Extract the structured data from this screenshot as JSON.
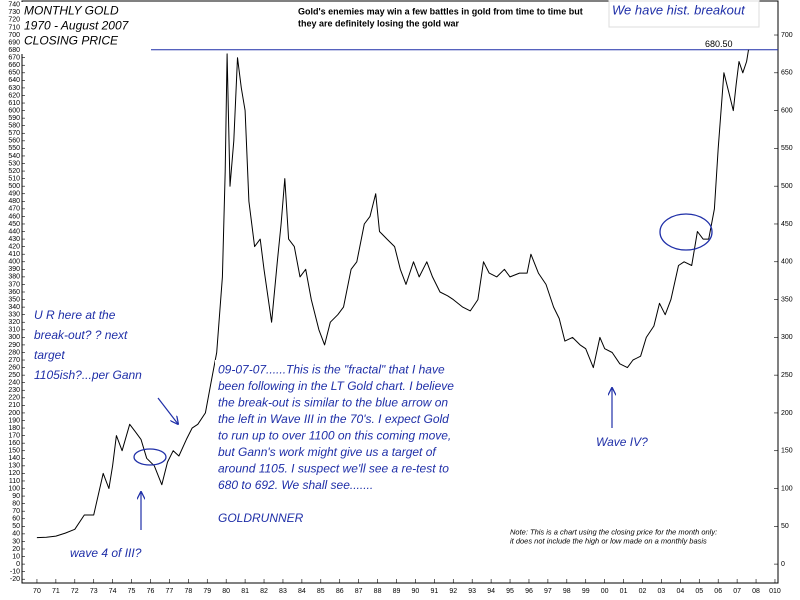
{
  "chart_data": {
    "type": "line",
    "series": [
      {
        "name": "Gold closing price",
        "color": "#000000",
        "x": [
          1970.0,
          1970.5,
          1971.0,
          1971.5,
          1972.0,
          1972.5,
          1973.0,
          1973.5,
          1973.8,
          1974.0,
          1974.2,
          1974.5,
          1974.9,
          1975.2,
          1975.5,
          1975.8,
          1976.2,
          1976.6,
          1976.9,
          1977.2,
          1977.5,
          1977.9,
          1978.2,
          1978.5,
          1978.9,
          1979.2,
          1979.5,
          1979.8,
          1979.95,
          1980.05,
          1980.2,
          1980.4,
          1980.6,
          1980.8,
          1981.0,
          1981.2,
          1981.5,
          1981.8,
          1982.0,
          1982.4,
          1982.7,
          1982.9,
          1983.1,
          1983.3,
          1983.6,
          1983.9,
          1984.2,
          1984.5,
          1984.9,
          1985.2,
          1985.5,
          1985.9,
          1986.2,
          1986.6,
          1986.9,
          1987.3,
          1987.6,
          1987.9,
          1988.1,
          1988.5,
          1988.9,
          1989.2,
          1989.5,
          1989.9,
          1990.2,
          1990.6,
          1990.9,
          1991.3,
          1991.7,
          1992.0,
          1992.5,
          1992.9,
          1993.3,
          1993.6,
          1993.9,
          1994.3,
          1994.7,
          1995.0,
          1995.5,
          1995.9,
          1996.1,
          1996.5,
          1996.9,
          1997.3,
          1997.6,
          1997.9,
          1998.3,
          1998.7,
          1999.0,
          1999.4,
          1999.75,
          2000.0,
          2000.4,
          2000.8,
          2001.2,
          2001.5,
          2001.9,
          2002.2,
          2002.6,
          2002.9,
          2003.2,
          2003.5,
          2003.9,
          2004.2,
          2004.6,
          2004.9,
          2005.2,
          2005.5,
          2005.8,
          2006.0,
          2006.3,
          2006.6,
          2006.8,
          2006.95,
          2007.1,
          2007.3,
          2007.5,
          2007.6
        ],
        "values": [
          35,
          35.5,
          37,
          41,
          46,
          65,
          65,
          120,
          100,
          130,
          170,
          150,
          185,
          175,
          165,
          140,
          130,
          105,
          135,
          150,
          143,
          165,
          180,
          185,
          200,
          240,
          280,
          380,
          520,
          675,
          500,
          560,
          670,
          630,
          600,
          480,
          420,
          430,
          390,
          320,
          400,
          450,
          510,
          430,
          420,
          380,
          390,
          350,
          310,
          290,
          320,
          330,
          340,
          390,
          400,
          450,
          460,
          490,
          440,
          430,
          420,
          390,
          370,
          400,
          380,
          400,
          380,
          360,
          355,
          350,
          340,
          335,
          350,
          400,
          385,
          380,
          390,
          380,
          385,
          385,
          410,
          385,
          370,
          340,
          325,
          295,
          300,
          290,
          285,
          260,
          300,
          285,
          280,
          265,
          260,
          270,
          275,
          300,
          315,
          345,
          330,
          350,
          395,
          400,
          395,
          440,
          430,
          430,
          470,
          550,
          650,
          620,
          600,
          635,
          665,
          650,
          665,
          680.5
        ]
      }
    ],
    "xlim": [
      1969.21,
      2009.16
    ],
    "xticks": [
      {
        "value": 1970,
        "label": "70"
      },
      {
        "value": 1971,
        "label": "71"
      },
      {
        "value": 1972,
        "label": "72"
      },
      {
        "value": 1973,
        "label": "73"
      },
      {
        "value": 1974,
        "label": "74"
      },
      {
        "value": 1975,
        "label": "75"
      },
      {
        "value": 1976,
        "label": "76"
      },
      {
        "value": 1977,
        "label": "77"
      },
      {
        "value": 1978,
        "label": "78"
      },
      {
        "value": 1979,
        "label": "79"
      },
      {
        "value": 1980,
        "label": "80"
      },
      {
        "value": 1981,
        "label": "81"
      },
      {
        "value": 1982,
        "label": "82"
      },
      {
        "value": 1983,
        "label": "83"
      },
      {
        "value": 1984,
        "label": "84"
      },
      {
        "value": 1985,
        "label": "85"
      },
      {
        "value": 1986,
        "label": "86"
      },
      {
        "value": 1987,
        "label": "87"
      },
      {
        "value": 1988,
        "label": "88"
      },
      {
        "value": 1989,
        "label": "89"
      },
      {
        "value": 1990,
        "label": "90"
      },
      {
        "value": 1991,
        "label": "91"
      },
      {
        "value": 1992,
        "label": "92"
      },
      {
        "value": 1993,
        "label": "93"
      },
      {
        "value": 1994,
        "label": "94"
      },
      {
        "value": 1995,
        "label": "95"
      },
      {
        "value": 1996,
        "label": "96"
      },
      {
        "value": 1997,
        "label": "97"
      },
      {
        "value": 1998,
        "label": "98"
      },
      {
        "value": 1999,
        "label": "99"
      },
      {
        "value": 2000,
        "label": "00"
      },
      {
        "value": 2001,
        "label": "01"
      },
      {
        "value": 2002,
        "label": "02"
      },
      {
        "value": 2003,
        "label": "03"
      },
      {
        "value": 2004,
        "label": "04"
      },
      {
        "value": 2005,
        "label": "05"
      },
      {
        "value": 2006,
        "label": "06"
      },
      {
        "value": 2007,
        "label": "07"
      },
      {
        "value": 2008,
        "label": "08"
      },
      {
        "value": 2009,
        "label": "010"
      }
    ],
    "ylim": [
      -25,
      745
    ],
    "yticks": [
      -20,
      -10,
      0,
      10,
      20,
      30,
      40,
      50,
      60,
      70,
      80,
      90,
      100,
      110,
      120,
      130,
      140,
      150,
      160,
      170,
      180,
      190,
      200,
      210,
      220,
      230,
      240,
      250,
      260,
      270,
      280,
      290,
      300,
      310,
      320,
      330,
      340,
      350,
      360,
      370,
      380,
      390,
      400,
      410,
      420,
      430,
      440,
      450,
      460,
      470,
      480,
      490,
      500,
      510,
      520,
      530,
      540,
      550,
      560,
      570,
      580,
      590,
      600,
      610,
      620,
      630,
      640,
      650,
      660,
      670,
      680,
      690,
      700,
      710,
      720,
      730,
      740
    ],
    "y2lim": [
      -25,
      745
    ],
    "y2ticks": [
      0,
      50,
      100,
      150,
      200,
      250,
      300,
      350,
      400,
      450,
      500,
      550,
      600,
      650,
      700
    ],
    "hline": {
      "value": 680.5,
      "label": "680.50"
    },
    "annotations": [
      {
        "lines": [
          "MONTHLY GOLD",
          "1970 - August 2007",
          "CLOSING PRICE"
        ]
      },
      {
        "lines": [
          "Gold's enemies may win a few battles in gold from time to time but",
          "they are definitely losing the gold war"
        ]
      },
      {
        "lines": [
          "We have hist. breakout"
        ]
      },
      {
        "lines": [
          "U R here at the",
          "break-out?  ? next",
          "target",
          "1105ish?...per Gann"
        ]
      },
      {
        "lines": [
          "wave 4 of III?"
        ]
      },
      {
        "lines": [
          "09-07-07......This is the \"fractal\" that I have",
          "been following in the LT Gold chart.  I believe",
          "the break-out is similar to the blue arrow on",
          "the left in Wave III in the 70's.  I expect Gold",
          "to run up to over 1100 on this coming move,",
          "but Gann's work might give us a target of",
          "around 1105.  I suspect we'll see a re-test to",
          "680 to 692.  We shall see.......",
          "",
          "GOLDRUNNER"
        ]
      },
      {
        "lines": [
          "Wave IV?"
        ]
      },
      {
        "lines": [
          "Note: This is a chart using the closing price for the month only:",
          "it does not include the high or low made on a monthly basis"
        ]
      }
    ]
  }
}
